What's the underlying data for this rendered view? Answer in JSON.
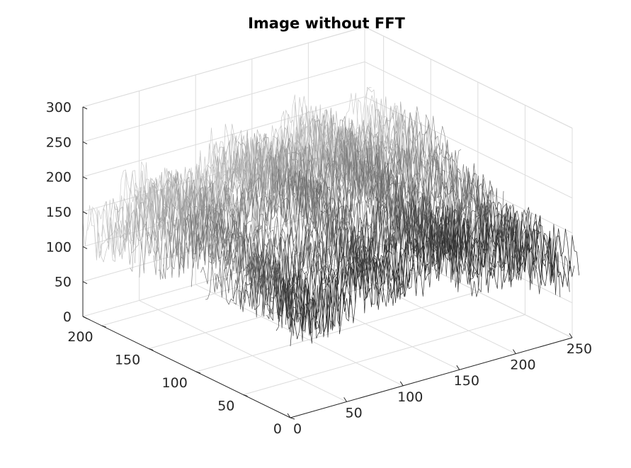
{
  "chart_data": {
    "type": "surface",
    "title": "Image without FFT",
    "colormap": "gray",
    "render_style": "mesh",
    "x_axis": {
      "range": [
        0,
        250
      ],
      "ticks": [
        "0",
        "50",
        "100",
        "150",
        "200",
        "250"
      ]
    },
    "y_axis": {
      "range": [
        0,
        220
      ],
      "ticks": [
        "0",
        "50",
        "100",
        "150",
        "200"
      ]
    },
    "z_axis": {
      "range": [
        0,
        300
      ],
      "ticks": [
        "0",
        "50",
        "100",
        "150",
        "200",
        "250",
        "300"
      ]
    },
    "grid": true,
    "surface_summary": {
      "x_extent": [
        0,
        256
      ],
      "y_extent": [
        0,
        220
      ],
      "z_min": 0,
      "z_max": 255,
      "typical_range": [
        30,
        240
      ]
    }
  }
}
